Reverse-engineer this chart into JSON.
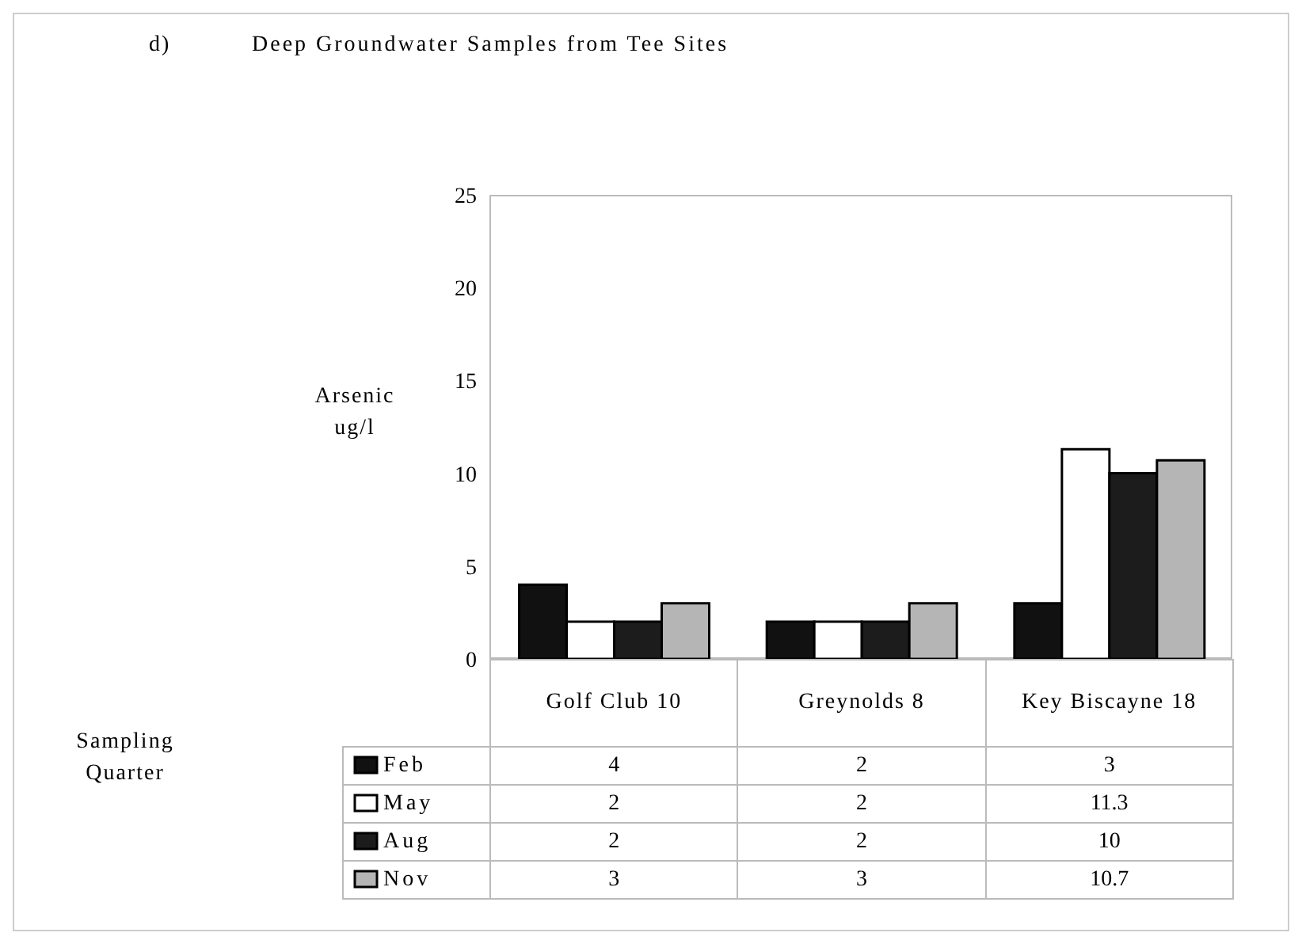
{
  "chart_data": {
    "type": "bar",
    "title": "Deep Groundwater Samples from Tee Sites",
    "annotations": [
      "d)",
      "Sampling Quarter"
    ],
    "ylabel": "Arsenic ug/l",
    "categories": [
      "Golf Club 10",
      "Greynolds 8",
      "Key Biscayne 18"
    ],
    "series": [
      {
        "name": "Feb",
        "color": "#111111",
        "values": [
          4,
          2,
          3
        ]
      },
      {
        "name": "May",
        "color": "#ffffff",
        "values": [
          2,
          2,
          11.3
        ]
      },
      {
        "name": "Aug",
        "color": "#1c1c1c",
        "values": [
          2,
          2,
          10
        ]
      },
      {
        "name": "Nov",
        "color": "#b5b5b5",
        "values": [
          3,
          3,
          10.7
        ]
      }
    ],
    "ylim": [
      0,
      25
    ],
    "yticks": [
      0,
      5,
      10,
      15,
      20,
      25
    ],
    "legend": "bottom",
    "data_labels": true
  }
}
